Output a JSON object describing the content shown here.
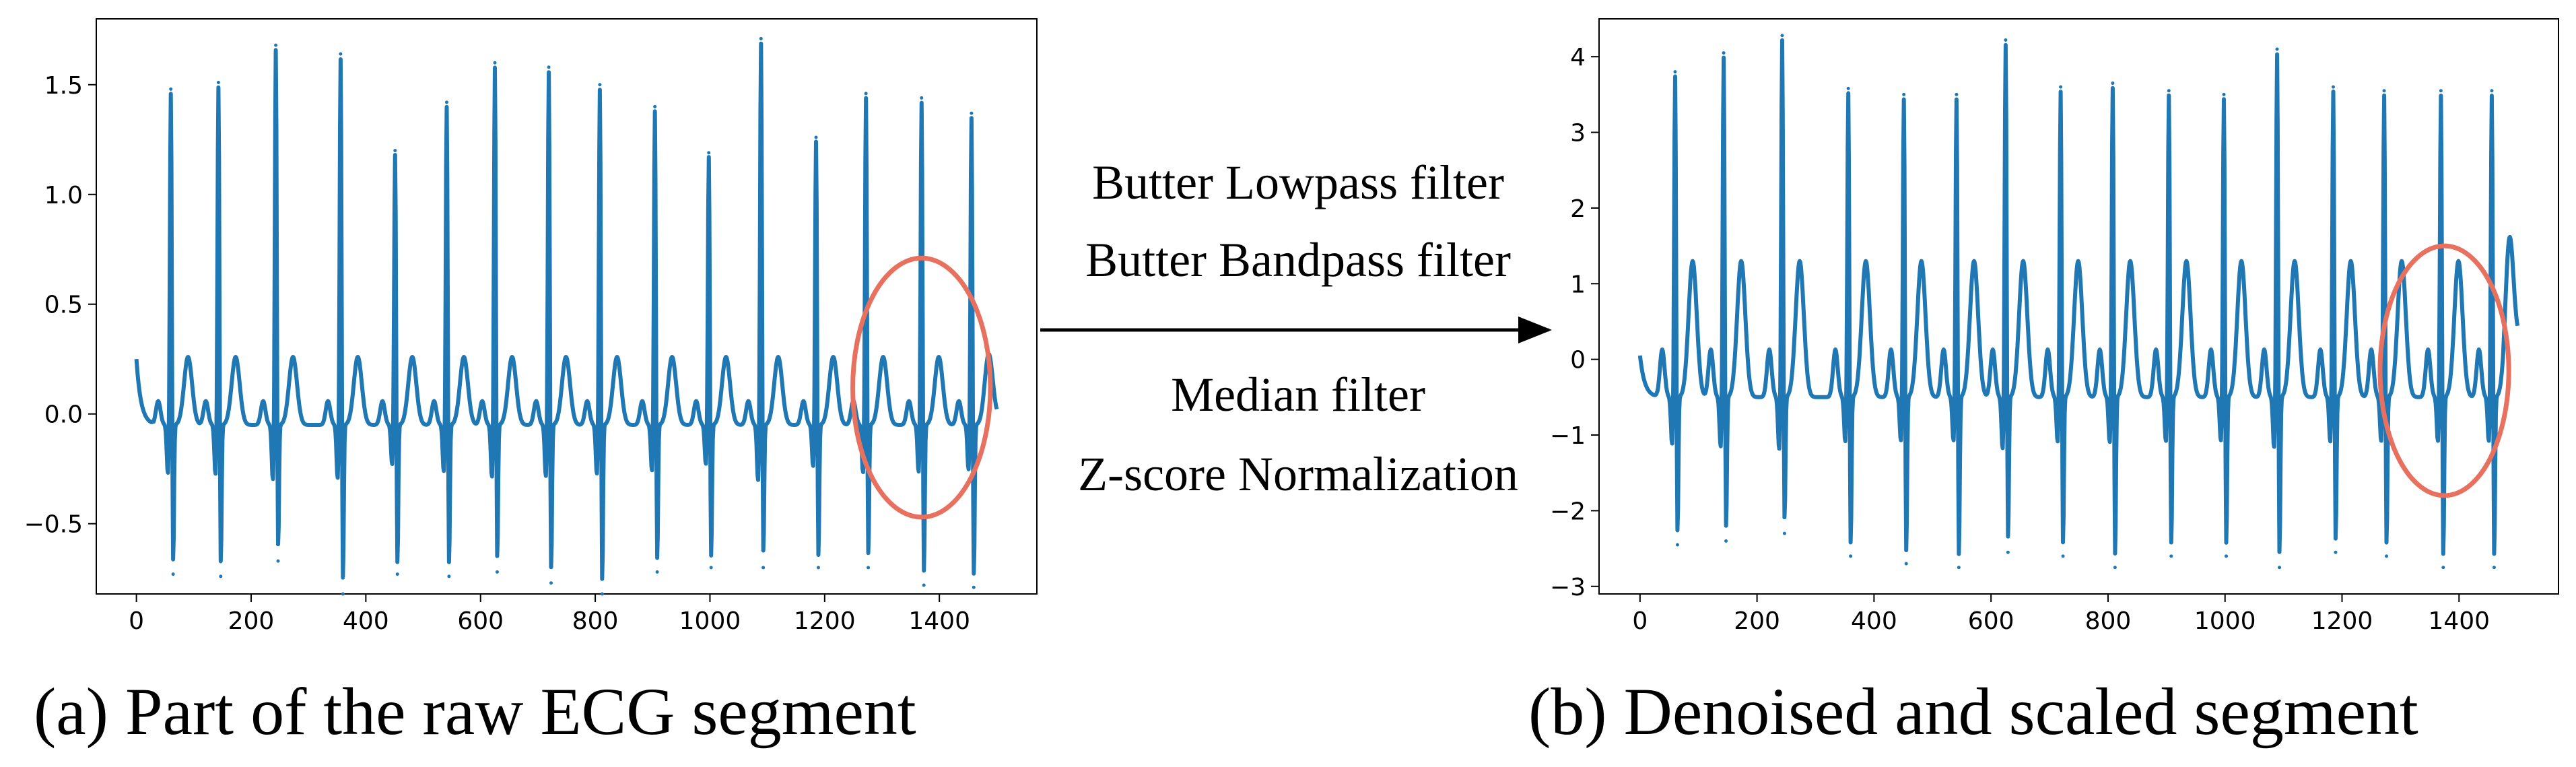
{
  "colors": {
    "signal": "#1f77b4",
    "highlight": "#e8705e",
    "axis": "#000000",
    "arrow": "#000000"
  },
  "processing": {
    "steps": [
      "Butter Lowpass filter",
      "Butter Bandpass filter",
      "Median filter",
      "Z-score Normalization"
    ]
  },
  "chart_data": [
    {
      "type": "line",
      "caption": "(a) Part of the raw ECG segment",
      "xlim": [
        -70,
        1570
      ],
      "ylim": [
        -0.82,
        1.8
      ],
      "xticks": [
        0,
        200,
        400,
        600,
        800,
        1000,
        1200,
        1400
      ],
      "xtick_labels": [
        "0",
        "200",
        "400",
        "600",
        "800",
        "1000",
        "1200",
        "1400"
      ],
      "yticks": [
        -0.5,
        0.0,
        0.5,
        1.0,
        1.5
      ],
      "ytick_labels": [
        "−0.5",
        "0.0",
        "0.5",
        "1.0",
        "1.5"
      ],
      "baseline": -0.05,
      "start_value": 0.25,
      "end_value": -0.02,
      "n_samples": 1500,
      "beats": [
        {
          "x": 60,
          "peak": 1.48,
          "trough": -0.73
        },
        {
          "x": 143,
          "peak": 1.51,
          "trough": -0.74
        },
        {
          "x": 243,
          "peak": 1.68,
          "trough": -0.67
        },
        {
          "x": 356,
          "peak": 1.64,
          "trough": -0.82
        },
        {
          "x": 451,
          "peak": 1.2,
          "trough": -0.73
        },
        {
          "x": 541,
          "peak": 1.42,
          "trough": -0.74
        },
        {
          "x": 625,
          "peak": 1.6,
          "trough": -0.72
        },
        {
          "x": 719,
          "peak": 1.58,
          "trough": -0.77
        },
        {
          "x": 808,
          "peak": 1.5,
          "trough": -0.82
        },
        {
          "x": 904,
          "peak": 1.4,
          "trough": -0.72
        },
        {
          "x": 998,
          "peak": 1.19,
          "trough": -0.7
        },
        {
          "x": 1089,
          "peak": 1.71,
          "trough": -0.7
        },
        {
          "x": 1185,
          "peak": 1.26,
          "trough": -0.7
        },
        {
          "x": 1272,
          "peak": 1.46,
          "trough": -0.7
        },
        {
          "x": 1369,
          "peak": 1.44,
          "trough": -0.78
        },
        {
          "x": 1456,
          "peak": 1.37,
          "trough": -0.79
        }
      ],
      "twave": 0.26,
      "highlight": {
        "cx": 1369,
        "cy": 0.12,
        "rx": 120,
        "ry": 0.59
      }
    },
    {
      "type": "line",
      "caption": "(b) Denoised and scaled segment",
      "xlim": [
        -70,
        1570
      ],
      "ylim": [
        -3.1,
        4.5
      ],
      "xticks": [
        0,
        200,
        400,
        600,
        800,
        1000,
        1200,
        1400
      ],
      "xtick_labels": [
        "0",
        "200",
        "400",
        "600",
        "800",
        "1000",
        "1200",
        "1400"
      ],
      "yticks": [
        -3,
        -2,
        -1,
        0,
        1,
        2,
        3,
        4
      ],
      "ytick_labels": [
        "−3",
        "−2",
        "−1",
        "0",
        "1",
        "2",
        "3",
        "4"
      ],
      "baseline": -0.5,
      "start_value": 0.05,
      "end_value": 0.2,
      "n_samples": 1500,
      "beats": [
        {
          "x": 60,
          "peak": 3.8,
          "trough": -2.45
        },
        {
          "x": 143,
          "peak": 4.05,
          "trough": -2.4
        },
        {
          "x": 243,
          "peak": 4.28,
          "trough": -2.3
        },
        {
          "x": 356,
          "peak": 3.58,
          "trough": -2.6
        },
        {
          "x": 451,
          "peak": 3.5,
          "trough": -2.7
        },
        {
          "x": 541,
          "peak": 3.5,
          "trough": -2.75
        },
        {
          "x": 625,
          "peak": 4.22,
          "trough": -2.55
        },
        {
          "x": 719,
          "peak": 3.6,
          "trough": -2.6
        },
        {
          "x": 808,
          "peak": 3.65,
          "trough": -2.75
        },
        {
          "x": 904,
          "peak": 3.55,
          "trough": -2.6
        },
        {
          "x": 998,
          "peak": 3.5,
          "trough": -2.6
        },
        {
          "x": 1089,
          "peak": 4.1,
          "trough": -2.75
        },
        {
          "x": 1185,
          "peak": 3.6,
          "trough": -2.55
        },
        {
          "x": 1272,
          "peak": 3.55,
          "trough": -2.6
        },
        {
          "x": 1369,
          "peak": 3.55,
          "trough": -2.75
        },
        {
          "x": 1456,
          "peak": 3.55,
          "trough": -2.75
        }
      ],
      "twave": 1.3,
      "highlight": {
        "cx": 1375,
        "cy": -0.15,
        "rx": 110,
        "ry": 1.65
      }
    }
  ]
}
